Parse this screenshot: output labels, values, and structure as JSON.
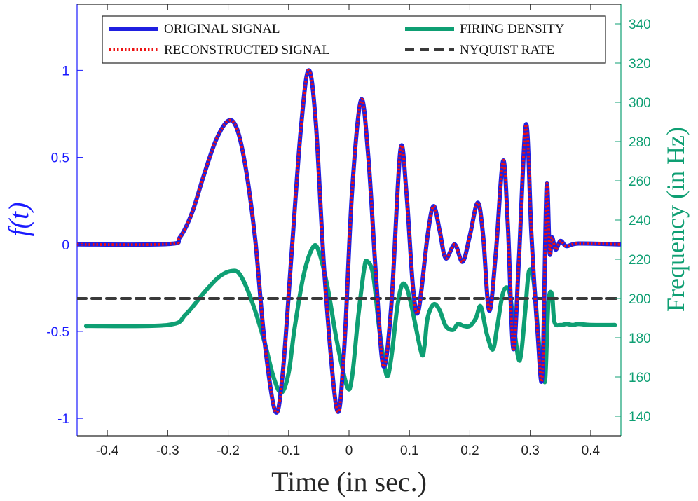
{
  "chart_data": {
    "type": "line",
    "xlabel": "Time (in sec.)",
    "ylabel_left": "f(t)",
    "ylabel_right": "Frequency (in Hz)",
    "xlim": [
      -0.45,
      0.45
    ],
    "ylim_left": [
      -1.1,
      1.38
    ],
    "ylim_right": [
      130,
      350
    ],
    "x_ticks": [
      -0.4,
      -0.3,
      -0.2,
      -0.1,
      0,
      0.1,
      0.2,
      0.3,
      0.4
    ],
    "x_tick_labels": [
      "-0.4",
      "-0.3",
      "-0.2",
      "-0.1",
      "0",
      "0.1",
      "0.2",
      "0.3",
      "0.4"
    ],
    "y_left_ticks": [
      -1,
      -0.5,
      0,
      0.5,
      1
    ],
    "y_left_tick_labels": [
      "-1",
      "-0.5",
      "0",
      "0.5",
      "1"
    ],
    "y_right_ticks": [
      140,
      160,
      180,
      200,
      220,
      240,
      260,
      280,
      300,
      320,
      340
    ],
    "y_right_tick_labels": [
      "140",
      "160",
      "180",
      "200",
      "220",
      "240",
      "260",
      "280",
      "300",
      "320",
      "340"
    ],
    "grid": false,
    "legend_position": "top",
    "colors": {
      "left_axis": "#1a1aff",
      "right_axis": "#0e9f73",
      "original": "#1f1fe0",
      "reconstructed": "#ee1111",
      "firing": "#0e9f73",
      "nyquist": "#3a3a3a"
    },
    "series": [
      {
        "name": "ORIGINAL SIGNAL",
        "axis": "left",
        "style": "solid",
        "points": [
          [
            -0.45,
            0
          ],
          [
            -0.3,
            0.002
          ],
          [
            -0.28,
            0.04
          ],
          [
            -0.26,
            0.18
          ],
          [
            -0.24,
            0.4
          ],
          [
            -0.22,
            0.6
          ],
          [
            -0.2,
            0.71
          ],
          [
            -0.185,
            0.66
          ],
          [
            -0.17,
            0.42
          ],
          [
            -0.155,
            0.02
          ],
          [
            -0.14,
            -0.55
          ],
          [
            -0.122,
            -0.96
          ],
          [
            -0.11,
            -0.75
          ],
          [
            -0.095,
            -0.05
          ],
          [
            -0.08,
            0.65
          ],
          [
            -0.067,
            1.0
          ],
          [
            -0.055,
            0.7
          ],
          [
            -0.04,
            -0.2
          ],
          [
            -0.02,
            -0.95
          ],
          [
            -0.008,
            -0.6
          ],
          [
            0.005,
            0.3
          ],
          [
            0.02,
            0.83
          ],
          [
            0.032,
            0.5
          ],
          [
            0.045,
            -0.2
          ],
          [
            0.057,
            -0.7
          ],
          [
            0.07,
            -0.35
          ],
          [
            0.085,
            0.54
          ],
          [
            0.095,
            0.3
          ],
          [
            0.106,
            -0.25
          ],
          [
            0.115,
            -0.38
          ],
          [
            0.13,
            0.05
          ],
          [
            0.14,
            0.22
          ],
          [
            0.15,
            0.08
          ],
          [
            0.16,
            -0.08
          ],
          [
            0.175,
            0.0
          ],
          [
            0.188,
            -0.1
          ],
          [
            0.2,
            0.05
          ],
          [
            0.213,
            0.24
          ],
          [
            0.222,
            0.05
          ],
          [
            0.232,
            -0.38
          ],
          [
            0.243,
            -0.05
          ],
          [
            0.255,
            0.48
          ],
          [
            0.263,
            0.1
          ],
          [
            0.272,
            -0.6
          ],
          [
            0.281,
            -0.1
          ],
          [
            0.293,
            0.69
          ],
          [
            0.302,
            0.05
          ],
          [
            0.312,
            -0.5
          ],
          [
            0.32,
            -0.75
          ],
          [
            0.327,
            0.33
          ],
          [
            0.332,
            -0.05
          ],
          [
            0.336,
            0.04
          ],
          [
            0.342,
            -0.03
          ],
          [
            0.35,
            0.02
          ],
          [
            0.36,
            -0.01
          ],
          [
            0.38,
            0.005
          ],
          [
            0.45,
            0
          ]
        ]
      },
      {
        "name": "RECONSTRUCTED SIGNAL",
        "axis": "left",
        "style": "dotted",
        "points": [
          [
            -0.45,
            0
          ],
          [
            -0.3,
            0.002
          ],
          [
            -0.28,
            0.04
          ],
          [
            -0.26,
            0.18
          ],
          [
            -0.24,
            0.4
          ],
          [
            -0.22,
            0.6
          ],
          [
            -0.2,
            0.71
          ],
          [
            -0.185,
            0.66
          ],
          [
            -0.17,
            0.42
          ],
          [
            -0.155,
            0.02
          ],
          [
            -0.14,
            -0.55
          ],
          [
            -0.122,
            -0.96
          ],
          [
            -0.11,
            -0.75
          ],
          [
            -0.095,
            -0.05
          ],
          [
            -0.08,
            0.65
          ],
          [
            -0.067,
            1.0
          ],
          [
            -0.055,
            0.7
          ],
          [
            -0.04,
            -0.2
          ],
          [
            -0.02,
            -0.95
          ],
          [
            -0.008,
            -0.6
          ],
          [
            0.005,
            0.3
          ],
          [
            0.02,
            0.83
          ],
          [
            0.032,
            0.5
          ],
          [
            0.045,
            -0.2
          ],
          [
            0.057,
            -0.7
          ],
          [
            0.07,
            -0.35
          ],
          [
            0.085,
            0.54
          ],
          [
            0.095,
            0.3
          ],
          [
            0.106,
            -0.25
          ],
          [
            0.115,
            -0.38
          ],
          [
            0.13,
            0.05
          ],
          [
            0.14,
            0.22
          ],
          [
            0.15,
            0.08
          ],
          [
            0.16,
            -0.08
          ],
          [
            0.175,
            0.0
          ],
          [
            0.188,
            -0.1
          ],
          [
            0.2,
            0.05
          ],
          [
            0.213,
            0.24
          ],
          [
            0.222,
            0.05
          ],
          [
            0.232,
            -0.38
          ],
          [
            0.243,
            -0.05
          ],
          [
            0.255,
            0.48
          ],
          [
            0.263,
            0.1
          ],
          [
            0.272,
            -0.6
          ],
          [
            0.281,
            -0.1
          ],
          [
            0.293,
            0.69
          ],
          [
            0.302,
            0.05
          ],
          [
            0.312,
            -0.5
          ],
          [
            0.32,
            -0.75
          ],
          [
            0.327,
            0.33
          ],
          [
            0.332,
            -0.05
          ],
          [
            0.336,
            0.04
          ],
          [
            0.342,
            -0.03
          ],
          [
            0.35,
            0.02
          ],
          [
            0.36,
            -0.01
          ],
          [
            0.38,
            0.005
          ],
          [
            0.45,
            0
          ]
        ]
      },
      {
        "name": "FIRING DENSITY",
        "axis": "right",
        "style": "solid",
        "points": [
          [
            -0.435,
            186
          ],
          [
            -0.3,
            186.5
          ],
          [
            -0.27,
            192
          ],
          [
            -0.24,
            203
          ],
          [
            -0.215,
            211
          ],
          [
            -0.195,
            214
          ],
          [
            -0.18,
            212
          ],
          [
            -0.16,
            198
          ],
          [
            -0.14,
            178
          ],
          [
            -0.125,
            160
          ],
          [
            -0.112,
            152
          ],
          [
            -0.1,
            162
          ],
          [
            -0.09,
            185
          ],
          [
            -0.075,
            212
          ],
          [
            -0.06,
            226
          ],
          [
            -0.05,
            224
          ],
          [
            -0.035,
            205
          ],
          [
            -0.02,
            178
          ],
          [
            -0.003,
            155
          ],
          [
            0.005,
            160
          ],
          [
            0.015,
            190
          ],
          [
            0.025,
            215
          ],
          [
            0.03,
            219
          ],
          [
            0.04,
            212
          ],
          [
            0.05,
            185
          ],
          [
            0.062,
            161
          ],
          [
            0.07,
            170
          ],
          [
            0.08,
            196
          ],
          [
            0.088,
            207
          ],
          [
            0.096,
            205
          ],
          [
            0.105,
            194
          ],
          [
            0.12,
            172
          ],
          [
            0.125,
            176
          ],
          [
            0.13,
            190
          ],
          [
            0.14,
            197
          ],
          [
            0.15,
            194
          ],
          [
            0.16,
            186
          ],
          [
            0.172,
            184
          ],
          [
            0.18,
            187
          ],
          [
            0.19,
            186
          ],
          [
            0.2,
            186
          ],
          [
            0.21,
            190
          ],
          [
            0.218,
            196
          ],
          [
            0.228,
            182
          ],
          [
            0.238,
            174
          ],
          [
            0.245,
            185
          ],
          [
            0.255,
            203
          ],
          [
            0.265,
            204
          ],
          [
            0.272,
            188
          ],
          [
            0.28,
            170
          ],
          [
            0.285,
            172
          ],
          [
            0.292,
            195
          ],
          [
            0.298,
            214
          ],
          [
            0.306,
            208
          ],
          [
            0.315,
            175
          ],
          [
            0.322,
            162
          ],
          [
            0.325,
            160
          ],
          [
            0.33,
            198
          ],
          [
            0.336,
            202
          ],
          [
            0.34,
            188
          ],
          [
            0.35,
            186.5
          ],
          [
            0.36,
            187
          ],
          [
            0.37,
            186.5
          ],
          [
            0.38,
            187
          ],
          [
            0.4,
            186.5
          ],
          [
            0.44,
            186.5
          ]
        ]
      },
      {
        "name": "NYQUIST RATE",
        "axis": "right",
        "style": "dashed",
        "points": [
          [
            -0.45,
            200
          ],
          [
            0.45,
            200
          ]
        ]
      }
    ]
  }
}
